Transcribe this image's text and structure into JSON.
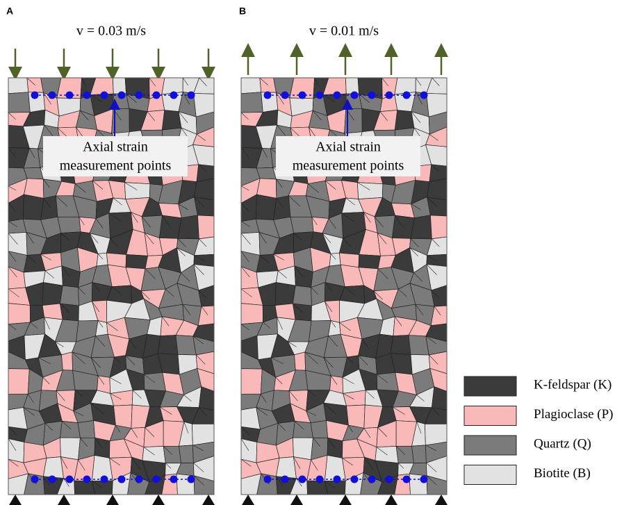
{
  "panels": [
    {
      "label": "A",
      "velocity": "v = 0.03 m/s",
      "annotation": [
        "Axial strain",
        "measurement points"
      ]
    },
    {
      "label": "B",
      "velocity": "v = 0.01 m/s",
      "annotation": [
        "Axial strain",
        "measurement points"
      ]
    }
  ],
  "legend": [
    {
      "label": "K-feldspar (K)",
      "color": "#3b3b3b"
    },
    {
      "label": "Plagioclase (P)",
      "color": "#f9b9b9"
    },
    {
      "label": "Quartz (Q)",
      "color": "#7b7b7b"
    },
    {
      "label": "Biotite (B)",
      "color": "#e2e2e2"
    }
  ]
}
